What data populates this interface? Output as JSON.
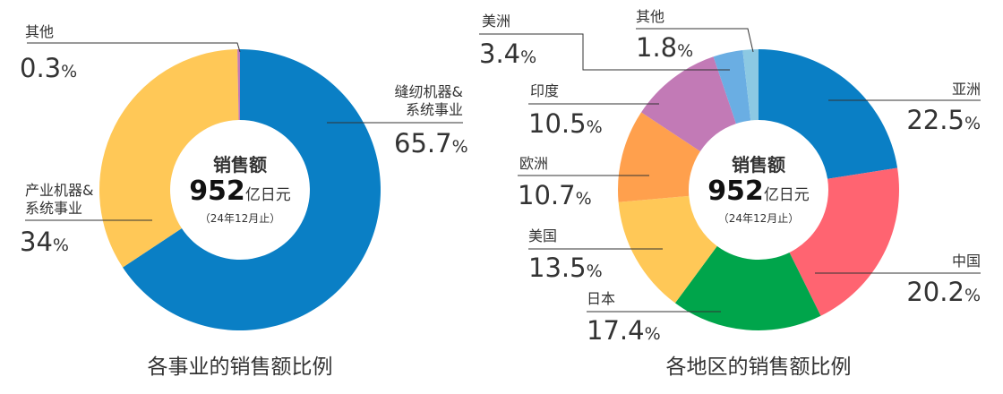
{
  "chart_data": [
    {
      "type": "pie",
      "donut": true,
      "title": "各事业的销售额比例",
      "center": {
        "label": "销售额",
        "value": "952",
        "unit": "亿日元",
        "note": "（24年12月止）"
      },
      "slices": [
        {
          "name_lines": [
            "缝纫机器&",
            "系统事业"
          ],
          "value": 65.7,
          "display": "65.7",
          "color": "#0a7fc5"
        },
        {
          "name_lines": [
            "产业机器&",
            "系统事业"
          ],
          "value": 34.0,
          "display": "34",
          "color": "#ffc857"
        },
        {
          "name_lines": [
            "其他"
          ],
          "value": 0.3,
          "display": "0.3",
          "color": "#c27ab6"
        }
      ],
      "unit": "%"
    },
    {
      "type": "pie",
      "donut": true,
      "title": "各地区的销售额比例",
      "center": {
        "label": "销售额",
        "value": "952",
        "unit": "亿日元",
        "note": "（24年12月止）"
      },
      "slices": [
        {
          "name_lines": [
            "亚洲"
          ],
          "value": 22.5,
          "display": "22.5",
          "color": "#0a7fc5"
        },
        {
          "name_lines": [
            "中国"
          ],
          "value": 20.2,
          "display": "20.2",
          "color": "#ff6471"
        },
        {
          "name_lines": [
            "日本"
          ],
          "value": 17.4,
          "display": "17.4",
          "color": "#00a54b"
        },
        {
          "name_lines": [
            "美国"
          ],
          "value": 13.5,
          "display": "13.5",
          "color": "#ffc857"
        },
        {
          "name_lines": [
            "欧洲"
          ],
          "value": 10.7,
          "display": "10.7",
          "color": "#ffa04d"
        },
        {
          "name_lines": [
            "印度"
          ],
          "value": 10.5,
          "display": "10.5",
          "color": "#c27ab6"
        },
        {
          "name_lines": [
            "美洲"
          ],
          "value": 3.4,
          "display": "3.4",
          "color": "#6aaee3"
        },
        {
          "name_lines": [
            "其他"
          ],
          "value": 1.8,
          "display": "1.8",
          "color": "#8cc9e3"
        }
      ],
      "unit": "%"
    }
  ]
}
